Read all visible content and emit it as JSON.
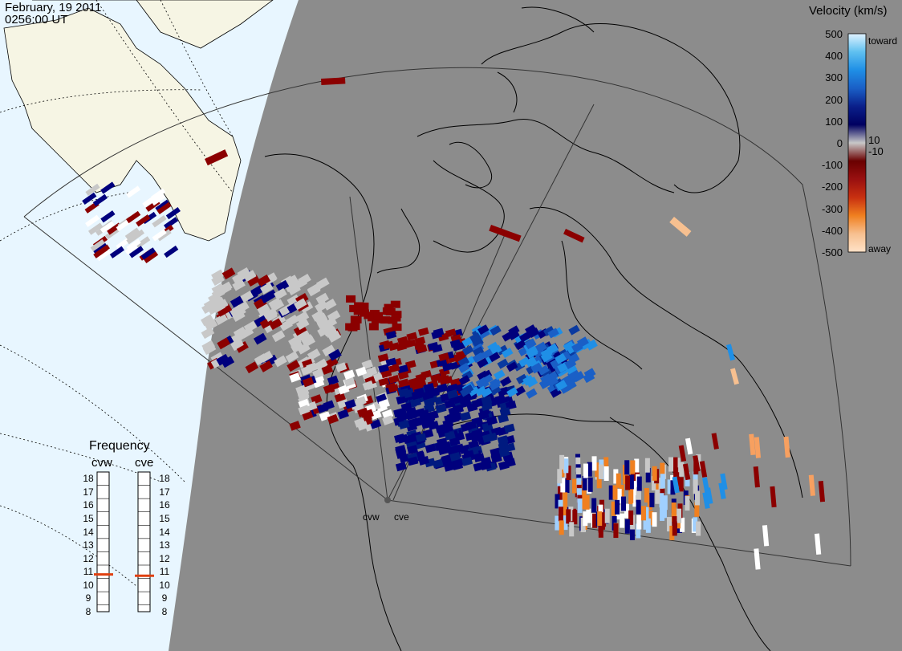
{
  "header": {
    "date": "February, 19 2011",
    "time": "0256:00 UT"
  },
  "colorbar": {
    "title": "Velocity (km/s)",
    "ticks": [
      "500",
      "400",
      "300",
      "200",
      "100",
      "0",
      "-100",
      "-200",
      "-300",
      "-400",
      "-500"
    ],
    "inner_ticks": [
      "10",
      "-10"
    ],
    "toward_label": "toward",
    "away_label": "away",
    "stops": [
      "#e0f2ff",
      "#5fc0f0",
      "#1f8fe6",
      "#1a5fc6",
      "#0a1f8a",
      "#000060",
      "#c8c8c8",
      "#6a0000",
      "#9a1010",
      "#c83010",
      "#f08020",
      "#f7c090",
      "#ffe2c8"
    ]
  },
  "frequency": {
    "title": "Frequency",
    "radars": [
      {
        "name": "cvw",
        "value": 10.8
      },
      {
        "name": "cve",
        "value": 10.7
      }
    ],
    "scale": [
      "18",
      "17",
      "16",
      "15",
      "14",
      "13",
      "12",
      "11",
      "10",
      "9",
      "8"
    ]
  },
  "sites": [
    {
      "name": "cvw"
    },
    {
      "name": "cve"
    }
  ],
  "colors": {
    "night": "#8c8c8c",
    "day_ocean": "#e8f6ff",
    "day_land": "#f6f5e4",
    "scatter_ground": "#c8c8c8",
    "toward_dark": "#00007d",
    "away_dark": "#8b0000"
  }
}
